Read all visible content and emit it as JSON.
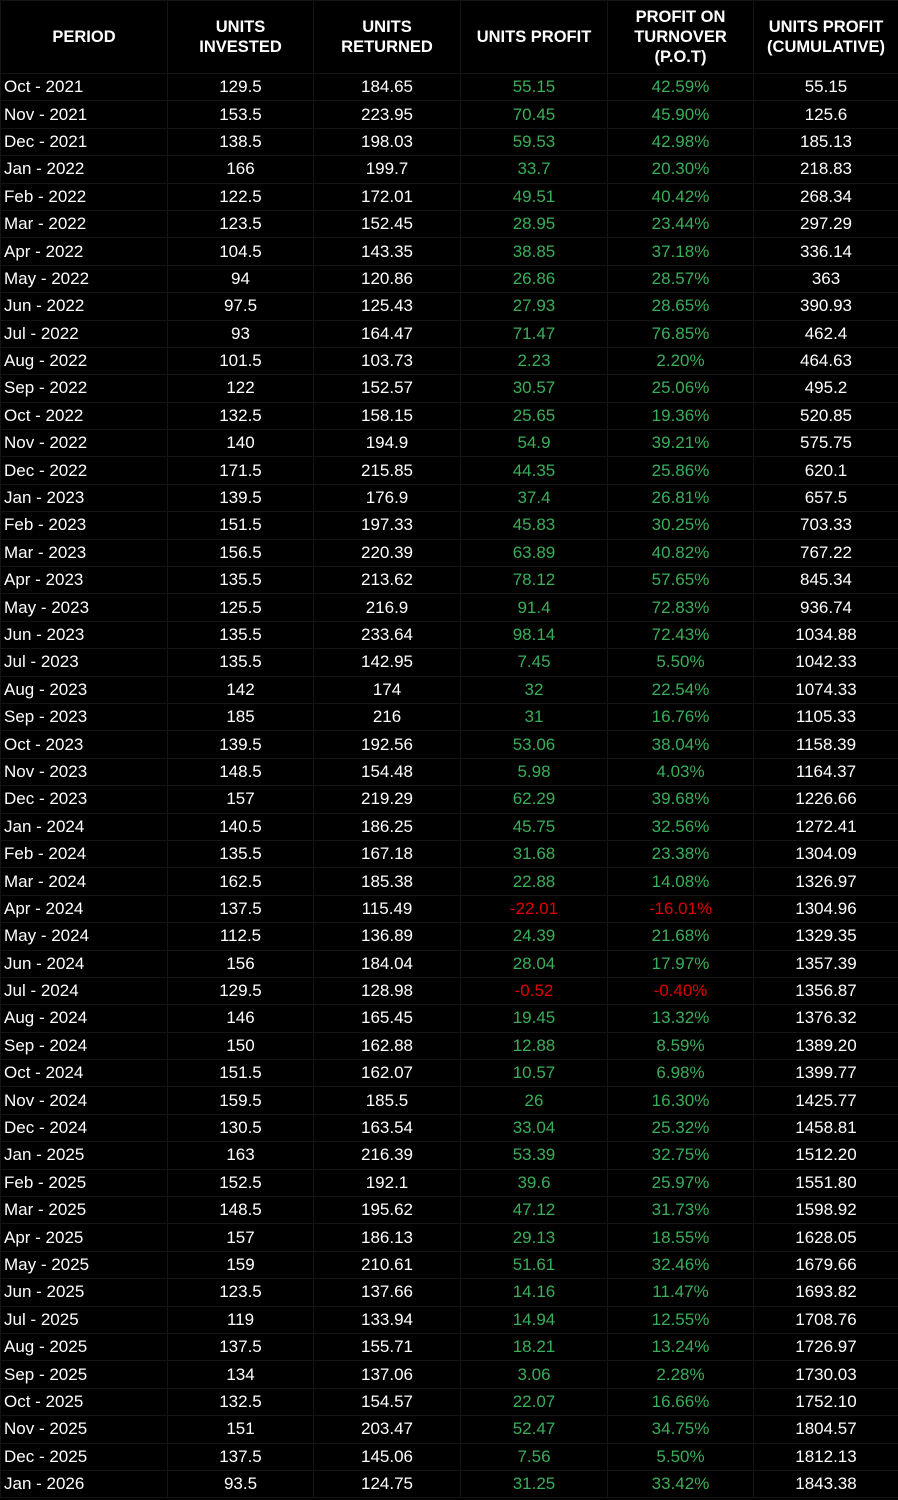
{
  "colors": {
    "positive": "#3aae59",
    "negative": "#e00000",
    "text": "#ffffff",
    "background": "#000000"
  },
  "headers": [
    "PERIOD",
    "UNITS\nINVESTED",
    "UNITS\nRETURNED",
    "UNITS PROFIT",
    "PROFIT ON\nTURNOVER\n(P.O.T)",
    "UNITS PROFIT\n(CUMULATIVE)"
  ],
  "rows": [
    [
      "Oct - 2021",
      "129.5",
      "184.65",
      "55.15",
      "42.59%",
      "55.15"
    ],
    [
      "Nov - 2021",
      "153.5",
      "223.95",
      "70.45",
      "45.90%",
      "125.6"
    ],
    [
      "Dec - 2021",
      "138.5",
      "198.03",
      "59.53",
      "42.98%",
      "185.13"
    ],
    [
      "Jan - 2022",
      "166",
      "199.7",
      "33.7",
      "20.30%",
      "218.83"
    ],
    [
      "Feb - 2022",
      "122.5",
      "172.01",
      "49.51",
      "40.42%",
      "268.34"
    ],
    [
      "Mar - 2022",
      "123.5",
      "152.45",
      "28.95",
      "23.44%",
      "297.29"
    ],
    [
      "Apr - 2022",
      "104.5",
      "143.35",
      "38.85",
      "37.18%",
      "336.14"
    ],
    [
      "May - 2022",
      "94",
      "120.86",
      "26.86",
      "28.57%",
      "363"
    ],
    [
      "Jun - 2022",
      "97.5",
      "125.43",
      "27.93",
      "28.65%",
      "390.93"
    ],
    [
      "Jul - 2022",
      "93",
      "164.47",
      "71.47",
      "76.85%",
      "462.4"
    ],
    [
      "Aug - 2022",
      "101.5",
      "103.73",
      "2.23",
      "2.20%",
      "464.63"
    ],
    [
      "Sep - 2022",
      "122",
      "152.57",
      "30.57",
      "25.06%",
      "495.2"
    ],
    [
      "Oct - 2022",
      "132.5",
      "158.15",
      "25.65",
      "19.36%",
      "520.85"
    ],
    [
      "Nov - 2022",
      "140",
      "194.9",
      "54.9",
      "39.21%",
      "575.75"
    ],
    [
      "Dec - 2022",
      "171.5",
      "215.85",
      "44.35",
      "25.86%",
      "620.1"
    ],
    [
      "Jan - 2023",
      "139.5",
      "176.9",
      "37.4",
      "26.81%",
      "657.5"
    ],
    [
      "Feb - 2023",
      "151.5",
      "197.33",
      "45.83",
      "30.25%",
      "703.33"
    ],
    [
      "Mar - 2023",
      "156.5",
      "220.39",
      "63.89",
      "40.82%",
      "767.22"
    ],
    [
      "Apr - 2023",
      "135.5",
      "213.62",
      "78.12",
      "57.65%",
      "845.34"
    ],
    [
      "May - 2023",
      "125.5",
      "216.9",
      "91.4",
      "72.83%",
      "936.74"
    ],
    [
      "Jun - 2023",
      "135.5",
      "233.64",
      "98.14",
      "72.43%",
      "1034.88"
    ],
    [
      "Jul - 2023",
      "135.5",
      "142.95",
      "7.45",
      "5.50%",
      "1042.33"
    ],
    [
      "Aug - 2023",
      "142",
      "174",
      "32",
      "22.54%",
      "1074.33"
    ],
    [
      "Sep - 2023",
      "185",
      "216",
      "31",
      "16.76%",
      "1105.33"
    ],
    [
      "Oct - 2023",
      "139.5",
      "192.56",
      "53.06",
      "38.04%",
      "1158.39"
    ],
    [
      "Nov - 2023",
      "148.5",
      "154.48",
      "5.98",
      "4.03%",
      "1164.37"
    ],
    [
      "Dec - 2023",
      "157",
      "219.29",
      "62.29",
      "39.68%",
      "1226.66"
    ],
    [
      "Jan - 2024",
      "140.5",
      "186.25",
      "45.75",
      "32.56%",
      "1272.41"
    ],
    [
      "Feb - 2024",
      "135.5",
      "167.18",
      "31.68",
      "23.38%",
      "1304.09"
    ],
    [
      "Mar - 2024",
      "162.5",
      "185.38",
      "22.88",
      "14.08%",
      "1326.97"
    ],
    [
      "Apr - 2024",
      "137.5",
      "115.49",
      "-22.01",
      "-16.01%",
      "1304.96"
    ],
    [
      "May - 2024",
      "112.5",
      "136.89",
      "24.39",
      "21.68%",
      "1329.35"
    ],
    [
      "Jun - 2024",
      "156",
      "184.04",
      "28.04",
      "17.97%",
      "1357.39"
    ],
    [
      "Jul - 2024",
      "129.5",
      "128.98",
      "-0.52",
      "-0.40%",
      "1356.87"
    ],
    [
      "Aug - 2024",
      "146",
      "165.45",
      "19.45",
      "13.32%",
      "1376.32"
    ],
    [
      "Sep - 2024",
      "150",
      "162.88",
      "12.88",
      "8.59%",
      "1389.20"
    ],
    [
      "Oct - 2024",
      "151.5",
      "162.07",
      "10.57",
      "6.98%",
      "1399.77"
    ],
    [
      "Nov - 2024",
      "159.5",
      "185.5",
      "26",
      "16.30%",
      "1425.77"
    ],
    [
      "Dec - 2024",
      "130.5",
      "163.54",
      "33.04",
      "25.32%",
      "1458.81"
    ],
    [
      "Jan - 2025",
      "163",
      "216.39",
      "53.39",
      "32.75%",
      "1512.20"
    ],
    [
      "Feb - 2025",
      "152.5",
      "192.1",
      "39.6",
      "25.97%",
      "1551.80"
    ],
    [
      "Mar - 2025",
      "148.5",
      "195.62",
      "47.12",
      "31.73%",
      "1598.92"
    ],
    [
      "Apr - 2025",
      "157",
      "186.13",
      "29.13",
      "18.55%",
      "1628.05"
    ],
    [
      "May - 2025",
      "159",
      "210.61",
      "51.61",
      "32.46%",
      "1679.66"
    ],
    [
      "Jun - 2025",
      "123.5",
      "137.66",
      "14.16",
      "11.47%",
      "1693.82"
    ],
    [
      "Jul - 2025",
      "119",
      "133.94",
      "14.94",
      "12.55%",
      "1708.76"
    ],
    [
      "Aug - 2025",
      "137.5",
      "155.71",
      "18.21",
      "13.24%",
      "1726.97"
    ],
    [
      "Sep - 2025",
      "134",
      "137.06",
      "3.06",
      "2.28%",
      "1730.03"
    ],
    [
      "Oct - 2025",
      "132.5",
      "154.57",
      "22.07",
      "16.66%",
      "1752.10"
    ],
    [
      "Nov - 2025",
      "151",
      "203.47",
      "52.47",
      "34.75%",
      "1804.57"
    ],
    [
      "Dec - 2025",
      "137.5",
      "145.06",
      "7.56",
      "5.50%",
      "1812.13"
    ],
    [
      "Jan - 2026",
      "93.5",
      "124.75",
      "31.25",
      "33.42%",
      "1843.38"
    ]
  ]
}
